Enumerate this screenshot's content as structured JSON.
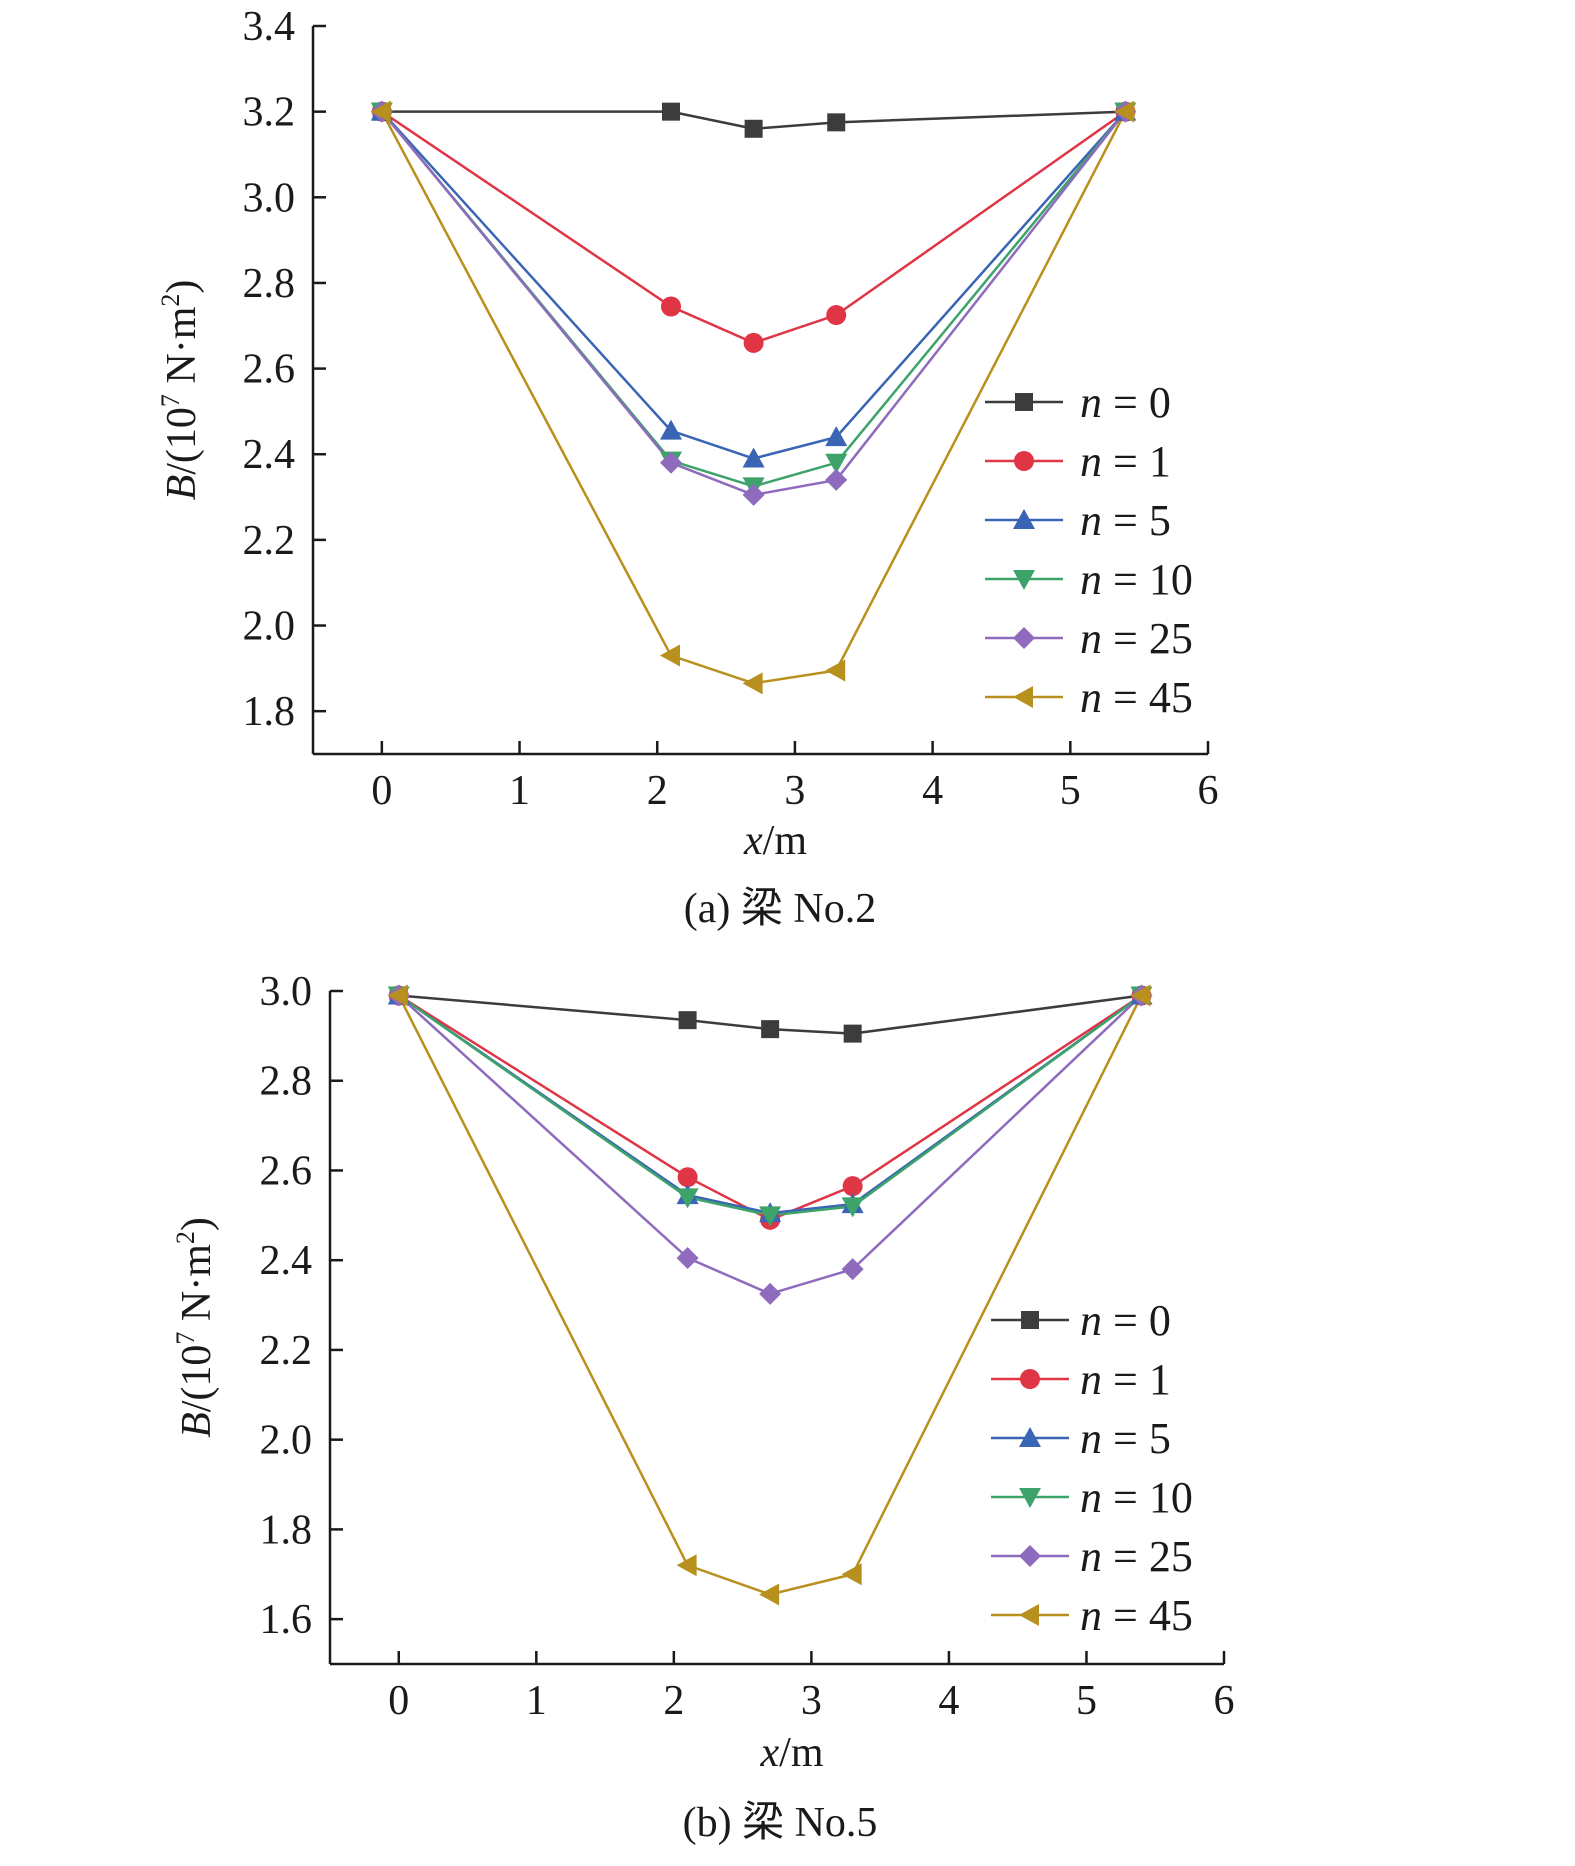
{
  "chart_data": [
    {
      "type": "line",
      "caption": "(a) 梁 No.2",
      "xlabel_var": "x",
      "xlabel_unit": "/m",
      "ylabel_var": "B",
      "ylabel_pre": "/(10",
      "ylabel_exp": "7",
      "ylabel_post": " N·m",
      "ylabel_exp2": "2",
      "ylabel_close": ")",
      "xlim": [
        -0.5,
        6
      ],
      "ylim": [
        1.7,
        3.4
      ],
      "x_ticks": [
        0,
        1,
        2,
        3,
        4,
        5,
        6
      ],
      "x_tick_labels": [
        "0",
        "1",
        "2",
        "3",
        "4",
        "5",
        "6"
      ],
      "y_ticks": [
        1.8,
        2.0,
        2.2,
        2.4,
        2.6,
        2.8,
        3.0,
        3.2,
        3.4
      ],
      "y_tick_labels": [
        "1.8",
        "2.0",
        "2.2",
        "2.4",
        "2.6",
        "2.8",
        "3.0",
        "3.2",
        "3.4"
      ],
      "x": [
        0,
        2.1,
        2.7,
        3.3,
        5.4
      ],
      "series": [
        {
          "name_var": "n",
          "name_value": " = 0",
          "color": "#3c3c3c",
          "marker": "square",
          "values": [
            3.2,
            3.2,
            3.16,
            3.175,
            3.2
          ]
        },
        {
          "name_var": "n",
          "name_value": " = 1",
          "color": "#e03545",
          "marker": "circle",
          "values": [
            3.2,
            2.745,
            2.66,
            2.725,
            3.2
          ]
        },
        {
          "name_var": "n",
          "name_value": " = 5",
          "color": "#3a64b4",
          "marker": "triangle-up",
          "values": [
            3.2,
            2.455,
            2.39,
            2.44,
            3.2
          ]
        },
        {
          "name_var": "n",
          "name_value": " = 10",
          "color": "#3ea36b",
          "marker": "triangle-down",
          "values": [
            3.2,
            2.385,
            2.325,
            2.38,
            3.2
          ]
        },
        {
          "name_var": "n",
          "name_value": " = 25",
          "color": "#8e6bbd",
          "marker": "diamond",
          "values": [
            3.2,
            2.38,
            2.305,
            2.34,
            3.2
          ]
        },
        {
          "name_var": "n",
          "name_value": " = 45",
          "color": "#b8901d",
          "marker": "triangle-left",
          "values": [
            3.2,
            1.93,
            1.865,
            1.895,
            3.2
          ]
        }
      ]
    },
    {
      "type": "line",
      "caption": "(b) 梁 No.5",
      "xlabel_var": "x",
      "xlabel_unit": "/m",
      "ylabel_var": "B",
      "ylabel_pre": "/(10",
      "ylabel_exp": "7",
      "ylabel_post": " N·m",
      "ylabel_exp2": "2",
      "ylabel_close": ")",
      "xlim": [
        -0.5,
        6
      ],
      "ylim": [
        1.5,
        3.0
      ],
      "x_ticks": [
        0,
        1,
        2,
        3,
        4,
        5,
        6
      ],
      "x_tick_labels": [
        "0",
        "1",
        "2",
        "3",
        "4",
        "5",
        "6"
      ],
      "y_ticks": [
        1.6,
        1.8,
        2.0,
        2.2,
        2.4,
        2.6,
        2.8,
        3.0
      ],
      "y_tick_labels": [
        "1.6",
        "1.8",
        "2.0",
        "2.2",
        "2.4",
        "2.6",
        "2.8",
        "3.0"
      ],
      "x": [
        0,
        2.1,
        2.7,
        3.3,
        5.4
      ],
      "series": [
        {
          "name_var": "n",
          "name_value": " = 0",
          "color": "#3c3c3c",
          "marker": "square",
          "values": [
            2.99,
            2.935,
            2.915,
            2.905,
            2.99
          ]
        },
        {
          "name_var": "n",
          "name_value": " = 1",
          "color": "#e03545",
          "marker": "circle",
          "values": [
            2.99,
            2.585,
            2.49,
            2.565,
            2.99
          ]
        },
        {
          "name_var": "n",
          "name_value": " = 5",
          "color": "#3a64b4",
          "marker": "triangle-up",
          "values": [
            2.99,
            2.545,
            2.505,
            2.525,
            2.99
          ]
        },
        {
          "name_var": "n",
          "name_value": " = 10",
          "color": "#3ea36b",
          "marker": "triangle-down",
          "values": [
            2.99,
            2.54,
            2.5,
            2.52,
            2.99
          ]
        },
        {
          "name_var": "n",
          "name_value": " = 25",
          "color": "#8e6bbd",
          "marker": "diamond",
          "values": [
            2.99,
            2.405,
            2.325,
            2.38,
            2.99
          ]
        },
        {
          "name_var": "n",
          "name_value": " = 45",
          "color": "#b8901d",
          "marker": "triangle-left",
          "values": [
            2.99,
            1.72,
            1.655,
            1.7,
            2.99
          ]
        }
      ]
    }
  ]
}
